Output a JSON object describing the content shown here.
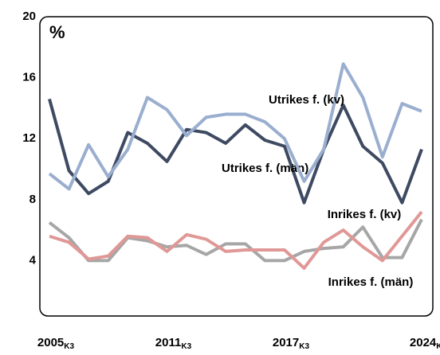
{
  "chart_data": {
    "type": "line",
    "unit_label": "%",
    "categories": [
      "2005",
      null,
      null,
      null,
      null,
      null,
      "2011",
      null,
      null,
      null,
      null,
      null,
      "2017",
      null,
      null,
      null,
      null,
      null,
      null,
      "2024"
    ],
    "category_suffix": "K3",
    "ylim": [
      0,
      20
    ],
    "yticks": [
      4,
      8,
      12,
      16,
      20
    ],
    "series": [
      {
        "name": "Utrikes f. (män)",
        "color": "#3e4a62",
        "values": [
          14.6,
          9.9,
          8.4,
          9.2,
          12.4,
          11.7,
          10.5,
          12.6,
          12.4,
          11.7,
          12.9,
          11.9,
          11.5,
          7.8,
          11.3,
          14.2,
          11.5,
          10.4,
          7.8,
          11.3
        ]
      },
      {
        "name": "Utrikes f. (kv)",
        "color": "#9aaecf",
        "values": [
          9.7,
          8.7,
          11.6,
          9.5,
          11.3,
          14.7,
          13.9,
          12.2,
          13.4,
          13.6,
          13.6,
          13.1,
          12.0,
          9.2,
          11.3,
          16.9,
          14.7,
          10.8,
          14.3,
          13.8
        ]
      },
      {
        "name": "Inrikes f. (män)",
        "color": "#a6a6a6",
        "values": [
          6.5,
          5.5,
          4.0,
          4.0,
          5.5,
          5.3,
          4.9,
          5.0,
          4.4,
          5.1,
          5.1,
          4.0,
          4.0,
          4.6,
          4.8,
          4.9,
          6.2,
          4.2,
          4.2,
          6.7
        ]
      },
      {
        "name": "Inrikes f. (kv)",
        "color": "#e09896",
        "values": [
          5.6,
          5.2,
          4.1,
          4.3,
          5.6,
          5.5,
          4.6,
          5.7,
          5.4,
          4.6,
          4.7,
          4.7,
          4.7,
          3.5,
          5.2,
          6.0,
          4.9,
          4.0,
          5.6,
          7.2
        ]
      }
    ]
  }
}
